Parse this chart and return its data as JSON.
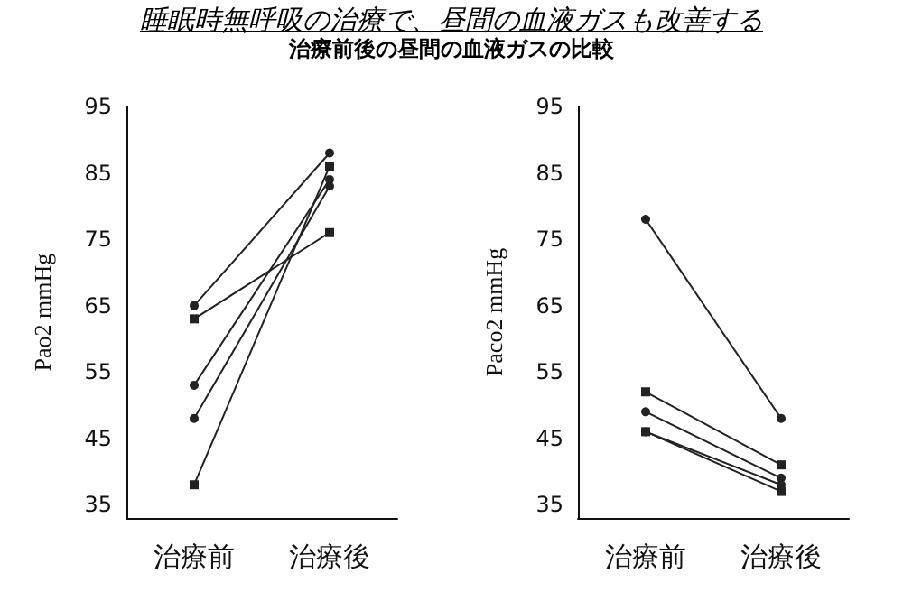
{
  "chart_data": [
    {
      "type": "line",
      "title": "睡眠時無呼吸の治療で、昼間の血液ガスも改善する",
      "subtitle": "治療前後の昼間の血液ガスの比較",
      "ylabel": "Pao2 mmHg",
      "categories": [
        "治療前",
        "治療後"
      ],
      "ylim": [
        33,
        95
      ],
      "yticks": [
        35,
        45,
        55,
        65,
        75,
        85,
        95
      ],
      "grid": false,
      "line_style": "solid",
      "series": [
        {
          "color": "#222222",
          "marker": "circle",
          "values": [
            65,
            88
          ]
        },
        {
          "color": "#222222",
          "marker": "square",
          "values": [
            63,
            76
          ]
        },
        {
          "color": "#222222",
          "marker": "circle",
          "values": [
            53,
            84
          ]
        },
        {
          "color": "#222222",
          "marker": "circle",
          "values": [
            48,
            83
          ]
        },
        {
          "color": "#222222",
          "marker": "square",
          "values": [
            38,
            86
          ]
        }
      ]
    },
    {
      "type": "line",
      "ylabel": "Paco2 mmHg",
      "categories": [
        "治療前",
        "治療後"
      ],
      "ylim": [
        33,
        95
      ],
      "yticks": [
        35,
        45,
        55,
        65,
        75,
        85,
        95
      ],
      "grid": false,
      "line_style": "solid",
      "series": [
        {
          "color": "#222222",
          "marker": "circle",
          "values": [
            78,
            48
          ]
        },
        {
          "color": "#222222",
          "marker": "square",
          "values": [
            52,
            41
          ]
        },
        {
          "color": "#222222",
          "marker": "circle",
          "values": [
            49,
            39
          ]
        },
        {
          "color": "#222222",
          "marker": "circle",
          "values": [
            46,
            38
          ]
        },
        {
          "color": "#222222",
          "marker": "square",
          "values": [
            46,
            37
          ]
        }
      ]
    }
  ]
}
